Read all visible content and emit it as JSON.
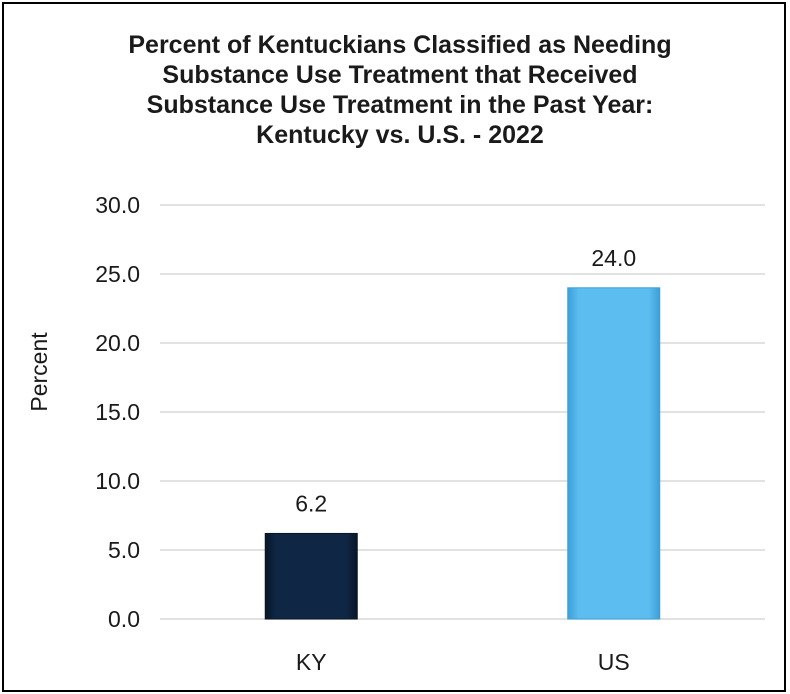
{
  "chart_data": {
    "type": "bar",
    "title_lines": [
      "Percent of Kentuckians Classified as Needing",
      "Substance Use Treatment that Received",
      "Substance Use Treatment in the Past Year:",
      "Kentucky vs. U.S. - 2022"
    ],
    "xlabel": "",
    "ylabel": "Percent",
    "categories": [
      "KY",
      "US"
    ],
    "values": [
      6.2,
      24.0
    ],
    "data_labels": [
      "6.2",
      "24.0"
    ],
    "ylim": [
      0,
      30
    ],
    "yticks": [
      "0.0",
      "5.0",
      "10.0",
      "15.0",
      "20.0",
      "25.0",
      "30.0"
    ],
    "ytick_values": [
      0,
      5,
      10,
      15,
      20,
      25,
      30
    ],
    "grid": true,
    "legend": "none",
    "colors": {
      "bars": [
        "#0f2745",
        "#5bbdf0"
      ],
      "bar_edge": [
        "#081628",
        "#3c9fd6"
      ],
      "gridline": "#d9d9d9",
      "text": "#1a1a1a"
    }
  }
}
